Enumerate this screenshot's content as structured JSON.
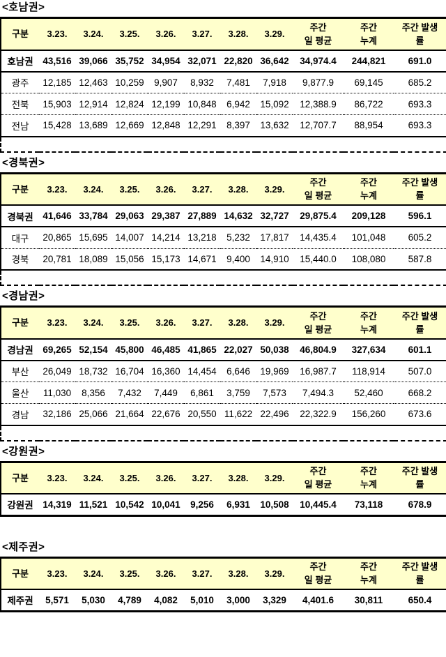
{
  "theme": {
    "header_bg": "#FFFFCC",
    "border_color": "#000000",
    "text_color": "#000000",
    "page_bg": "#FFFFFF"
  },
  "columns": [
    "구분",
    "3.23.",
    "3.24.",
    "3.25.",
    "3.26.",
    "3.27.",
    "3.28.",
    "3.29.",
    "주간\n일 평균",
    "주간\n누계",
    "주간 발생\n률"
  ],
  "sections": [
    {
      "title": "<호남권>",
      "trailing_cut_row": true,
      "rows": [
        {
          "label": "호남권",
          "total": true,
          "values": [
            "43,516",
            "39,066",
            "35,752",
            "34,954",
            "32,071",
            "22,820",
            "36,642",
            "34,974.4",
            "244,821",
            "691.0"
          ]
        },
        {
          "label": "광주",
          "total": false,
          "values": [
            "12,185",
            "12,463",
            "10,259",
            "9,907",
            "8,932",
            "7,481",
            "7,918",
            "9,877.9",
            "69,145",
            "685.2"
          ]
        },
        {
          "label": "전북",
          "total": false,
          "values": [
            "15,903",
            "12,914",
            "12,824",
            "12,199",
            "10,848",
            "6,942",
            "15,092",
            "12,388.9",
            "86,722",
            "693.3"
          ]
        },
        {
          "label": "전남",
          "total": false,
          "values": [
            "15,428",
            "13,689",
            "12,669",
            "12,848",
            "12,291",
            "8,397",
            "13,632",
            "12,707.7",
            "88,954",
            "693.3"
          ]
        }
      ]
    },
    {
      "title": "<경북권>",
      "trailing_cut_row": true,
      "rows": [
        {
          "label": "경북권",
          "total": true,
          "values": [
            "41,646",
            "33,784",
            "29,063",
            "29,387",
            "27,889",
            "14,632",
            "32,727",
            "29,875.4",
            "209,128",
            "596.1"
          ]
        },
        {
          "label": "대구",
          "total": false,
          "values": [
            "20,865",
            "15,695",
            "14,007",
            "14,214",
            "13,218",
            "5,232",
            "17,817",
            "14,435.4",
            "101,048",
            "605.2"
          ]
        },
        {
          "label": "경북",
          "total": false,
          "values": [
            "20,781",
            "18,089",
            "15,056",
            "15,173",
            "14,671",
            "9,400",
            "14,910",
            "15,440.0",
            "108,080",
            "587.8"
          ]
        }
      ]
    },
    {
      "title": "<경남권>",
      "trailing_cut_row": true,
      "rows": [
        {
          "label": "경남권",
          "total": true,
          "values": [
            "69,265",
            "52,154",
            "45,800",
            "46,485",
            "41,865",
            "22,027",
            "50,038",
            "46,804.9",
            "327,634",
            "601.1"
          ]
        },
        {
          "label": "부산",
          "total": false,
          "values": [
            "26,049",
            "18,732",
            "16,704",
            "16,360",
            "14,454",
            "6,646",
            "19,969",
            "16,987.7",
            "118,914",
            "507.0"
          ]
        },
        {
          "label": "울산",
          "total": false,
          "values": [
            "11,030",
            "8,356",
            "7,432",
            "7,449",
            "6,861",
            "3,759",
            "7,573",
            "7,494.3",
            "52,460",
            "668.2"
          ]
        },
        {
          "label": "경남",
          "total": false,
          "values": [
            "32,186",
            "25,066",
            "21,664",
            "22,676",
            "20,550",
            "11,622",
            "22,496",
            "22,322.9",
            "156,260",
            "673.6"
          ]
        }
      ]
    },
    {
      "title": "<강원권>",
      "trailing_cut_row": false,
      "rows": [
        {
          "label": "강원권",
          "total": true,
          "values": [
            "14,319",
            "11,521",
            "10,542",
            "10,041",
            "9,256",
            "6,931",
            "10,508",
            "10,445.4",
            "73,118",
            "678.9"
          ]
        }
      ]
    },
    {
      "title": "<제주권>",
      "trailing_cut_row": false,
      "rows": [
        {
          "label": "제주권",
          "total": true,
          "values": [
            "5,571",
            "5,030",
            "4,789",
            "4,082",
            "5,010",
            "3,000",
            "3,329",
            "4,401.6",
            "30,811",
            "650.4"
          ]
        }
      ]
    }
  ]
}
